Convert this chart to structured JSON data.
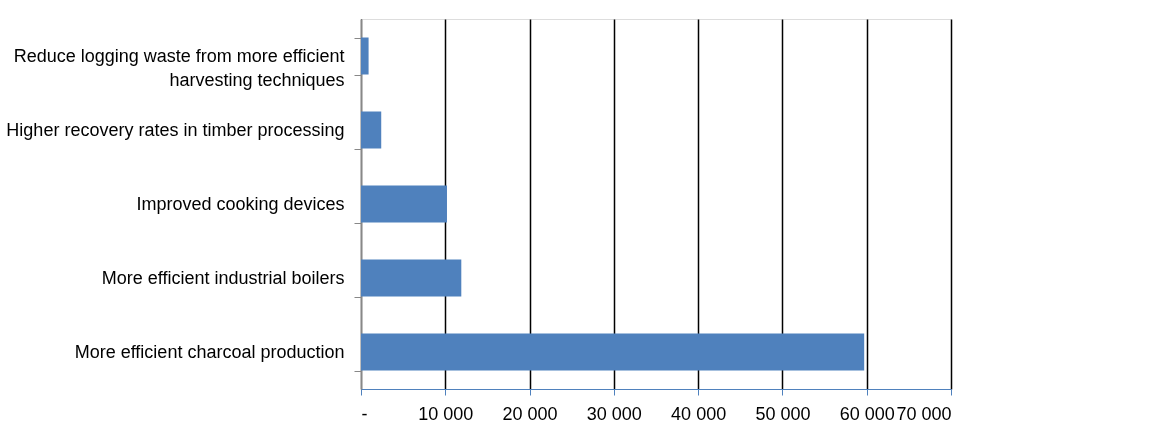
{
  "chart_data": {
    "type": "bar",
    "orientation": "horizontal",
    "categories": [
      "Reduce logging waste from more efficient harvesting techniques",
      "Higher recovery rates in timber processing",
      "Improved cooking devices",
      "More efficient industrial boilers",
      "More efficient charcoal production"
    ],
    "values": [
      900,
      2400,
      10200,
      11900,
      59700
    ],
    "color": "#4f81bd",
    "xlim": [
      0,
      70000
    ],
    "xticks": [
      {
        "value": 0,
        "label": "-"
      },
      {
        "value": 10000,
        "label": "10 000"
      },
      {
        "value": 20000,
        "label": "20 000"
      },
      {
        "value": 30000,
        "label": "30 000"
      },
      {
        "value": 40000,
        "label": "40 000"
      },
      {
        "value": 50000,
        "label": "50 000"
      },
      {
        "value": 60000,
        "label": "60 000"
      },
      {
        "value": 70000,
        "label": "70 000"
      }
    ],
    "grid": "x"
  }
}
